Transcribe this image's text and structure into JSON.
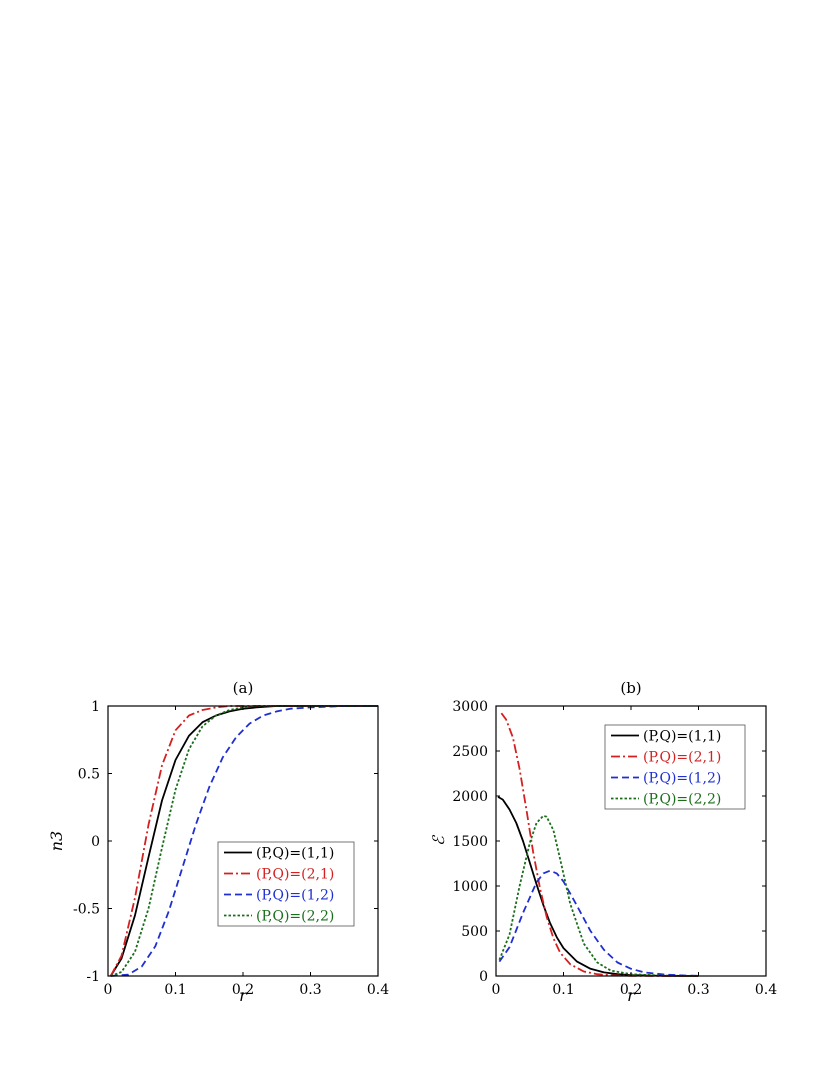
{
  "chart_data": [
    {
      "type": "line",
      "title": "(a)",
      "xlabel": "r",
      "ylabel": "n3",
      "xlim": [
        0,
        0.4
      ],
      "ylim": [
        -1,
        1
      ],
      "xticks": [
        "0",
        "0.1",
        "0.2",
        "0.3",
        "0.4"
      ],
      "yticks": [
        "-1",
        "-0.5",
        "0",
        "0.5",
        "1"
      ],
      "legend_position": "lower-right",
      "series": [
        {
          "name": "(P,Q)=(1,1)",
          "color": "#000000",
          "dash": "solid",
          "x": [
            0.004,
            0.02,
            0.04,
            0.06,
            0.08,
            0.1,
            0.12,
            0.14,
            0.16,
            0.18,
            0.2,
            0.22,
            0.25,
            0.3,
            0.4
          ],
          "y": [
            -1,
            -0.87,
            -0.55,
            -0.12,
            0.3,
            0.6,
            0.78,
            0.88,
            0.93,
            0.96,
            0.98,
            0.99,
            1,
            1,
            1
          ]
        },
        {
          "name": "(P,Q)=(2,1)",
          "color": "#d42020",
          "dash": "dashdot",
          "x": [
            0.004,
            0.02,
            0.04,
            0.06,
            0.08,
            0.1,
            0.12,
            0.14,
            0.16,
            0.18,
            0.2,
            0.22,
            0.3,
            0.4
          ],
          "y": [
            -1,
            -0.85,
            -0.42,
            0.12,
            0.56,
            0.82,
            0.93,
            0.97,
            0.99,
            1,
            1,
            1,
            1,
            1
          ]
        },
        {
          "name": "(P,Q)=(1,2)",
          "color": "#1f2fd0",
          "dash": "dashed",
          "x": [
            0.004,
            0.03,
            0.05,
            0.07,
            0.09,
            0.11,
            0.13,
            0.15,
            0.17,
            0.19,
            0.21,
            0.23,
            0.25,
            0.27,
            0.3,
            0.35,
            0.4
          ],
          "y": [
            -1,
            -0.99,
            -0.93,
            -0.78,
            -0.52,
            -0.2,
            0.12,
            0.4,
            0.62,
            0.77,
            0.87,
            0.93,
            0.96,
            0.98,
            0.99,
            1,
            1
          ]
        },
        {
          "name": "(P,Q)=(2,2)",
          "color": "#1a6e1a",
          "dash": "dotted",
          "x": [
            0.004,
            0.02,
            0.04,
            0.06,
            0.08,
            0.1,
            0.12,
            0.14,
            0.16,
            0.18,
            0.2,
            0.22,
            0.25,
            0.3,
            0.4
          ],
          "y": [
            -1,
            -0.97,
            -0.82,
            -0.5,
            -0.05,
            0.38,
            0.68,
            0.85,
            0.93,
            0.97,
            0.99,
            1,
            1,
            1,
            1
          ]
        }
      ]
    },
    {
      "type": "line",
      "title": "(b)",
      "xlabel": "r",
      "ylabel": "ℰ",
      "xlim": [
        0,
        0.4
      ],
      "ylim": [
        0,
        3000
      ],
      "xticks": [
        "0",
        "0.1",
        "0.2",
        "0.3",
        "0.4"
      ],
      "yticks": [
        "0",
        "500",
        "1000",
        "1500",
        "2000",
        "2500",
        "3000"
      ],
      "legend_position": "top-right",
      "series": [
        {
          "name": "(P,Q)=(1,1)",
          "color": "#000000",
          "dash": "solid",
          "x": [
            0.003,
            0.01,
            0.02,
            0.03,
            0.04,
            0.05,
            0.06,
            0.07,
            0.08,
            0.09,
            0.1,
            0.12,
            0.14,
            0.16,
            0.18,
            0.2,
            0.23,
            0.26,
            0.3
          ],
          "y": [
            1990,
            1960,
            1850,
            1700,
            1500,
            1260,
            1020,
            790,
            590,
            430,
            310,
            160,
            80,
            40,
            20,
            10,
            4,
            1,
            0
          ]
        },
        {
          "name": "(P,Q)=(2,1)",
          "color": "#d42020",
          "dash": "dashdot",
          "x": [
            0.008,
            0.015,
            0.025,
            0.035,
            0.045,
            0.055,
            0.065,
            0.075,
            0.085,
            0.095,
            0.11,
            0.13,
            0.15,
            0.17,
            0.2,
            0.25,
            0.3
          ],
          "y": [
            2920,
            2850,
            2650,
            2300,
            1850,
            1380,
            980,
            660,
            420,
            260,
            130,
            50,
            20,
            8,
            2,
            0,
            0
          ]
        },
        {
          "name": "(P,Q)=(1,2)",
          "color": "#1f2fd0",
          "dash": "dashed",
          "x": [
            0.005,
            0.02,
            0.04,
            0.06,
            0.07,
            0.08,
            0.09,
            0.1,
            0.12,
            0.14,
            0.16,
            0.18,
            0.2,
            0.22,
            0.25,
            0.28,
            0.3
          ],
          "y": [
            160,
            320,
            700,
            1040,
            1140,
            1170,
            1140,
            1050,
            780,
            500,
            290,
            150,
            80,
            40,
            15,
            5,
            2
          ]
        },
        {
          "name": "(P,Q)=(2,2)",
          "color": "#1a6e1a",
          "dash": "dotted",
          "x": [
            0.005,
            0.02,
            0.035,
            0.05,
            0.06,
            0.07,
            0.075,
            0.085,
            0.095,
            0.11,
            0.13,
            0.15,
            0.17,
            0.2,
            0.25,
            0.3
          ],
          "y": [
            180,
            460,
            1000,
            1480,
            1700,
            1780,
            1770,
            1620,
            1300,
            800,
            360,
            150,
            60,
            20,
            3,
            0
          ]
        }
      ]
    }
  ]
}
